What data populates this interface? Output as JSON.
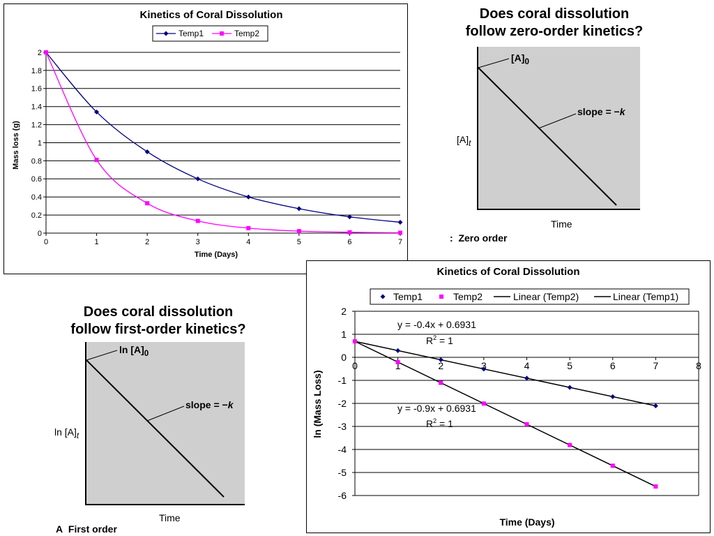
{
  "chart_data": [
    {
      "type": "line",
      "title": "Kinetics of Coral Dissolution",
      "xlabel": "Time (Days)",
      "ylabel": "Mass loss (g)",
      "xlim": [
        0,
        7
      ],
      "ylim": [
        0,
        2
      ],
      "xticks": [
        "0",
        "1",
        "2",
        "3",
        "4",
        "5",
        "6",
        "7"
      ],
      "yticks": [
        "0",
        "0.2",
        "0.4",
        "0.6",
        "0.8",
        "1",
        "1.2",
        "1.4",
        "1.6",
        "1.8",
        "2"
      ],
      "grid": "horizontal",
      "legend": "top",
      "x": [
        0,
        1,
        2,
        3,
        4,
        5,
        6,
        7
      ],
      "series": [
        {
          "name": "Temp1",
          "color": "#000080",
          "marker": "diamond",
          "values": [
            2.0,
            1.34,
            0.9,
            0.6,
            0.4,
            0.27,
            0.18,
            0.12
          ]
        },
        {
          "name": "Temp2",
          "color": "#ff00ff",
          "marker": "square",
          "values": [
            2.0,
            0.81,
            0.33,
            0.135,
            0.055,
            0.022,
            0.009,
            0.004
          ]
        }
      ]
    },
    {
      "type": "line",
      "title": "Kinetics of Coral Dissolution",
      "xlabel": "Time (Days)",
      "ylabel": "ln (Mass Loss)",
      "xlim": [
        0,
        8
      ],
      "ylim": [
        -6,
        2
      ],
      "xticks": [
        "0",
        "1",
        "2",
        "3",
        "4",
        "5",
        "6",
        "7",
        "8"
      ],
      "yticks": [
        "-6",
        "-5",
        "-4",
        "-3",
        "-2",
        "-1",
        "0",
        "1",
        "2"
      ],
      "grid": "horizontal",
      "legend": "top",
      "x": [
        0,
        1,
        2,
        3,
        4,
        5,
        6,
        7
      ],
      "series": [
        {
          "name": "Temp1",
          "color": "#000080",
          "marker": "diamond",
          "values": [
            0.6931,
            0.2931,
            -0.1069,
            -0.5069,
            -0.9069,
            -1.3069,
            -1.7069,
            -2.1069
          ]
        },
        {
          "name": "Temp2",
          "color": "#ff00ff",
          "marker": "square",
          "values": [
            0.6931,
            -0.2069,
            -1.1069,
            -2.0069,
            -2.9069,
            -3.8069,
            -4.7069,
            -5.6069
          ]
        }
      ],
      "trendlines": [
        {
          "name": "Linear (Temp2)",
          "slope": -0.9,
          "intercept": 0.6931,
          "color": "#000000"
        },
        {
          "name": "Linear (Temp1)",
          "slope": -0.4,
          "intercept": 0.6931,
          "color": "#000000"
        }
      ],
      "annotations": [
        {
          "equation": "y = -0.4x + 0.6931",
          "r2_base": "R",
          "r2_sup": "2",
          "r2_rest": " = 1"
        },
        {
          "equation": "y = -0.9x + 0.6931",
          "r2_base": "R",
          "r2_sup": "2",
          "r2_rest": " = 1"
        }
      ]
    }
  ],
  "zero_order": {
    "heading_line1": "Does coral dissolution",
    "heading_line2": "follow zero-order kinetics?",
    "a0_label": "[A]",
    "a0_sub": "0",
    "slope_label_prefix": "slope = −",
    "slope_label_k": "k",
    "y_axis_label": "[A]",
    "y_axis_sub": "t",
    "x_axis_label": "Time",
    "caption_prefix": ":",
    "caption": "Zero order"
  },
  "first_order": {
    "heading_line1": "Does coral dissolution",
    "heading_line2": "follow first-order kinetics?",
    "a0_label": "ln [A]",
    "a0_sub": "0",
    "slope_label_prefix": "slope = −",
    "slope_label_k": "k",
    "y_axis_label": "ln [A]",
    "y_axis_sub": "t",
    "x_axis_label": "Time",
    "caption_prefix": "A",
    "caption": "First order"
  }
}
